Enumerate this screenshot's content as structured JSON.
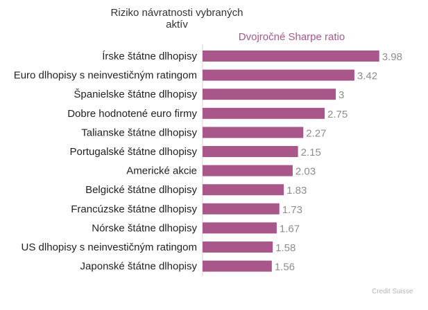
{
  "chart_data": {
    "type": "bar",
    "orientation": "horizontal",
    "title": "Riziko návratnosti vybraných aktív",
    "subtitle": "Dvojročné Sharpe ratio",
    "source": "Credit Suisse",
    "categories": [
      "Írske štátne dlhopisy",
      "Euro dlhopisy s neinvestičným ratingom",
      "Španielske štátne dlhopisy",
      "Dobre hodnotené euro firmy",
      "Talianske štátne dlhopisy",
      "Portugalské štátne dlhopisy",
      "Americké akcie",
      "Belgické štátne dlhopisy",
      "Francúzske štátne dlhopisy",
      "Nórske štátne dlhopisy",
      "US dlhopisy s neinvestičným ratingom",
      "Japonské štátne dlhopisy"
    ],
    "values": [
      3.98,
      3.42,
      3,
      2.75,
      2.27,
      2.15,
      2.03,
      1.83,
      1.73,
      1.67,
      1.58,
      1.56
    ],
    "value_labels": [
      "3.98",
      "3.42",
      "3",
      "2.75",
      "2.27",
      "2.15",
      "2.03",
      "1.83",
      "1.73",
      "1.67",
      "1.58",
      "1.56"
    ],
    "xlim": [
      0,
      4.5
    ],
    "grid": false,
    "bar_color": "#a9578a"
  }
}
